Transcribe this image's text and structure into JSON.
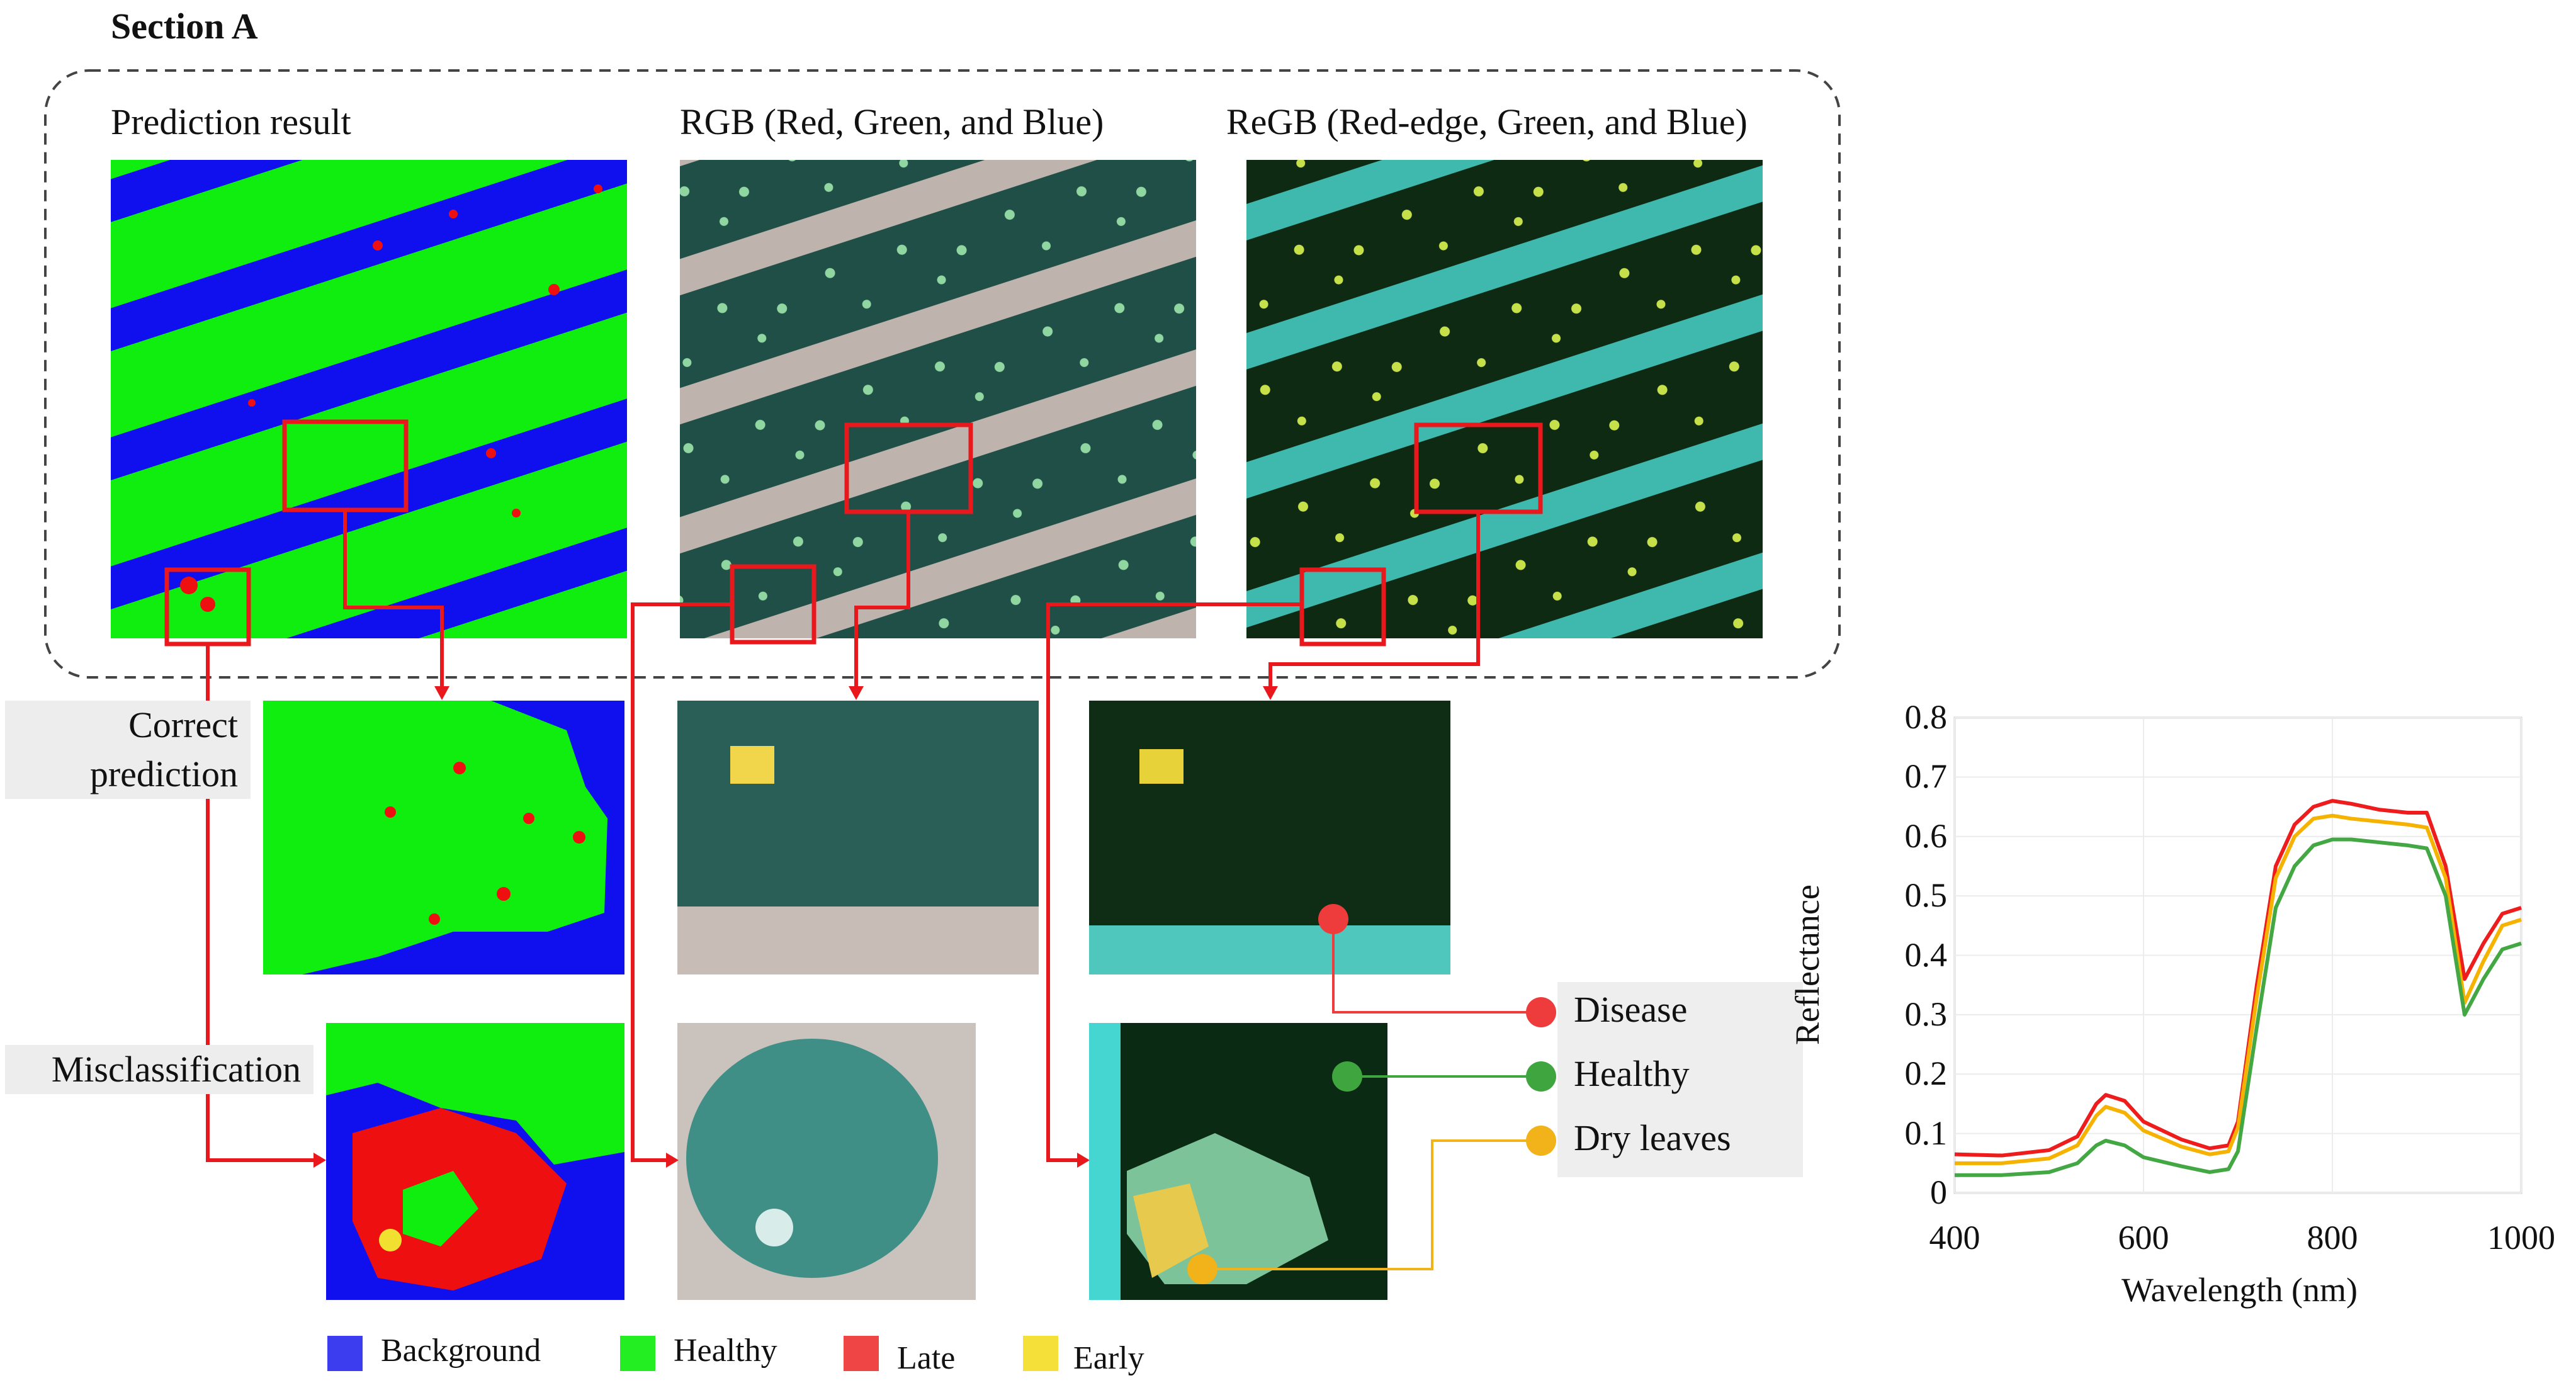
{
  "section_title": "Section A",
  "headers": {
    "prediction": "Prediction result",
    "rgb": "RGB (Red, Green, and Blue)",
    "regb": "ReGB (Red-edge, Green, and Blue)"
  },
  "row_labels": {
    "correct_line1": "Correct",
    "correct_line2": "prediction",
    "misclassification": "Misclassification"
  },
  "class_legend": [
    {
      "label": "Background",
      "color": "#3d3df0"
    },
    {
      "label": "Healthy",
      "color": "#22ee22"
    },
    {
      "label": "Late",
      "color": "#f04545"
    },
    {
      "label": "Early",
      "color": "#f5e03a"
    }
  ],
  "spectral_legend": [
    {
      "label": "Disease",
      "color": "#ee3b3b"
    },
    {
      "label": "Healthy",
      "color": "#3fa63f"
    },
    {
      "label": "Dry leaves",
      "color": "#f2b21a"
    }
  ],
  "colors": {
    "highlight_box": "#e8181c",
    "background_class": "#1010ee",
    "healthy_class": "#10ee10",
    "late_class": "#ee1010",
    "early_class": "#f2e030"
  },
  "chart_data": {
    "type": "line",
    "xlabel": "Wavelength (nm)",
    "ylabel": "Reflectance",
    "xlim": [
      400,
      1000
    ],
    "ylim": [
      0,
      0.8
    ],
    "x_ticks": [
      "400",
      "600",
      "800",
      "1000"
    ],
    "y_ticks": [
      "0",
      "0.1",
      "0.2",
      "0.3",
      "0.4",
      "0.5",
      "0.6",
      "0.7",
      "0.8"
    ],
    "grid": true,
    "x": [
      400,
      450,
      500,
      530,
      550,
      560,
      580,
      600,
      640,
      670,
      690,
      700,
      720,
      740,
      760,
      780,
      800,
      820,
      850,
      880,
      900,
      920,
      940,
      960,
      980,
      1000
    ],
    "series": [
      {
        "color": "#ee1c1c",
        "values": [
          0.065,
          0.063,
          0.072,
          0.095,
          0.15,
          0.165,
          0.155,
          0.12,
          0.09,
          0.075,
          0.08,
          0.12,
          0.35,
          0.55,
          0.62,
          0.65,
          0.66,
          0.655,
          0.645,
          0.64,
          0.64,
          0.55,
          0.36,
          0.42,
          0.47,
          0.48
        ]
      },
      {
        "color": "#f5b200",
        "values": [
          0.05,
          0.05,
          0.058,
          0.08,
          0.13,
          0.145,
          0.135,
          0.105,
          0.078,
          0.065,
          0.07,
          0.11,
          0.33,
          0.53,
          0.6,
          0.63,
          0.635,
          0.63,
          0.625,
          0.62,
          0.615,
          0.53,
          0.32,
          0.39,
          0.45,
          0.46
        ]
      },
      {
        "color": "#43a843",
        "values": [
          0.03,
          0.03,
          0.035,
          0.05,
          0.08,
          0.088,
          0.08,
          0.06,
          0.045,
          0.035,
          0.04,
          0.07,
          0.28,
          0.48,
          0.55,
          0.585,
          0.595,
          0.595,
          0.59,
          0.585,
          0.58,
          0.5,
          0.3,
          0.36,
          0.41,
          0.42
        ]
      }
    ]
  }
}
